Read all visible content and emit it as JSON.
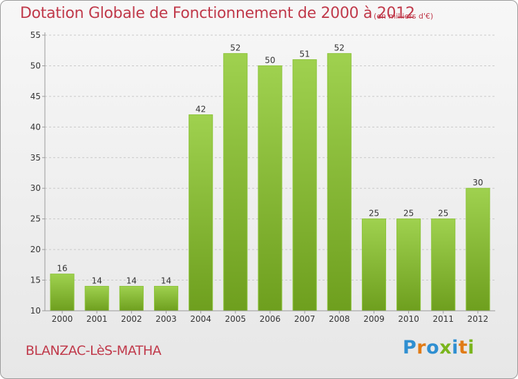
{
  "title": "Dotation Globale de Fonctionnement de 2000 à 2012",
  "unit_label": "(en milliers d'€)",
  "city": "BLANZAC-LèS-MATHA",
  "brand": {
    "letters": [
      "P",
      "r",
      "o",
      "x",
      "i",
      "t",
      "i"
    ],
    "colors": [
      "#2f8fd1",
      "#e07b16",
      "#2f8fd1",
      "#7ab51d",
      "#2f8fd1",
      "#e07b16",
      "#7ab51d"
    ]
  },
  "colors": {
    "title": "#c0394a",
    "bar_light": "#9fd14f",
    "bar_dark": "#6e9f1e",
    "grid": "#c8c8c8",
    "axis": "#999999"
  },
  "chart_data": {
    "type": "bar",
    "title": "Dotation Globale de Fonctionnement de 2000 à 2012",
    "xlabel": "",
    "ylabel": "",
    "unit": "(en milliers d'€)",
    "categories": [
      "2000",
      "2001",
      "2002",
      "2003",
      "2004",
      "2005",
      "2006",
      "2007",
      "2008",
      "2009",
      "2010",
      "2011",
      "2012"
    ],
    "values": [
      16,
      14,
      14,
      14,
      42,
      52,
      50,
      51,
      52,
      25,
      25,
      25,
      30
    ],
    "ylim": [
      10,
      55
    ],
    "yticks": [
      10,
      15,
      20,
      25,
      30,
      35,
      40,
      45,
      50,
      55
    ],
    "grid": true,
    "legend": "none"
  }
}
